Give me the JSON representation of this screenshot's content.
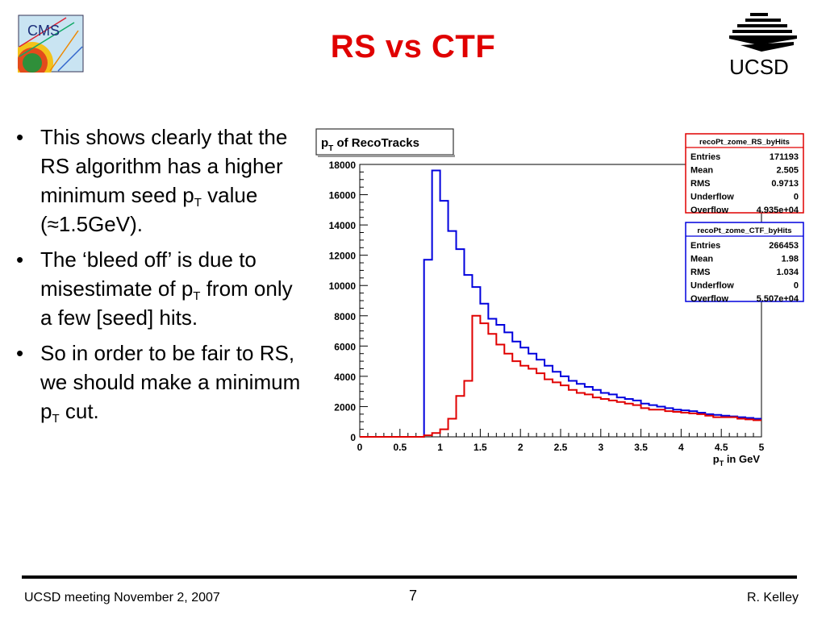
{
  "slide": {
    "title": "RS vs CTF",
    "cms_logo_text": "CMS",
    "ucsd_logo_text": "UCSD"
  },
  "bullets": [
    {
      "pre": "This shows clearly that the RS algorithm has a higher minimum seed p",
      "sub": "T",
      "post": " value (≈1.5GeV)."
    },
    {
      "pre": "The ‘bleed off’ is due to misestimate of p",
      "sub": "T",
      "post": " from only a few [seed] hits."
    },
    {
      "pre": "So in order to be fair to RS, we should make a minimum p",
      "sub": "T",
      "post": " cut."
    }
  ],
  "footer": {
    "left": "UCSD meeting November 2, 2007",
    "page": "7",
    "right": "R. Kelley"
  },
  "colors": {
    "title": "#e00000",
    "rs_series": "#e00000",
    "ctf_series": "#0000dd"
  },
  "chart_data": {
    "type": "line",
    "title": "p_T of RecoTracks",
    "title_main": "p",
    "title_sub": "T",
    "title_rest": " of RecoTracks",
    "xlabel_main": "p",
    "xlabel_sub": "T",
    "xlabel_rest": " in GeV",
    "xlim": [
      0,
      5
    ],
    "ylim": [
      0,
      18000
    ],
    "xticks": [
      "0",
      "0.5",
      "1",
      "1.5",
      "2",
      "2.5",
      "3",
      "3.5",
      "4",
      "4.5",
      "5"
    ],
    "yticks": [
      "0",
      "2000",
      "4000",
      "6000",
      "8000",
      "10000",
      "12000",
      "14000",
      "16000",
      "18000"
    ],
    "bin_width": 0.1,
    "bin_edges_start": 0,
    "series": [
      {
        "name": "recoPt_zome_RS_byHits",
        "color": "#e00000",
        "values": [
          0,
          0,
          0,
          0,
          0,
          0,
          0,
          0,
          100,
          250,
          500,
          1200,
          2700,
          3700,
          8000,
          7500,
          6800,
          6100,
          5500,
          5000,
          4700,
          4500,
          4200,
          3800,
          3600,
          3400,
          3100,
          2900,
          2800,
          2600,
          2500,
          2400,
          2300,
          2200,
          2100,
          1900,
          1800,
          1800,
          1700,
          1650,
          1600,
          1550,
          1500,
          1400,
          1300,
          1300,
          1300,
          1200,
          1150,
          1100
        ],
        "stats": [
          {
            "label": "Entries",
            "value": "171193"
          },
          {
            "label": "Mean",
            "value": "2.505"
          },
          {
            "label": "RMS",
            "value": "0.9713"
          },
          {
            "label": "Underflow",
            "value": "0"
          },
          {
            "label": "Overflow",
            "value": "4.935e+04"
          }
        ]
      },
      {
        "name": "recoPt_zome_CTF_byHits",
        "color": "#0000dd",
        "values": [
          0,
          0,
          0,
          0,
          0,
          0,
          0,
          0,
          11700,
          17600,
          15600,
          13600,
          12400,
          10700,
          9900,
          8800,
          7800,
          7400,
          6900,
          6300,
          5900,
          5500,
          5100,
          4700,
          4300,
          4000,
          3700,
          3500,
          3300,
          3100,
          2900,
          2800,
          2600,
          2500,
          2400,
          2200,
          2100,
          2000,
          1900,
          1800,
          1750,
          1700,
          1600,
          1500,
          1450,
          1400,
          1350,
          1300,
          1250,
          1200
        ],
        "stats": [
          {
            "label": "Entries",
            "value": "266453"
          },
          {
            "label": "Mean",
            "value": "1.98"
          },
          {
            "label": "RMS",
            "value": "1.034"
          },
          {
            "label": "Underflow",
            "value": "0"
          },
          {
            "label": "Overflow",
            "value": "5.507e+04"
          }
        ]
      }
    ]
  }
}
